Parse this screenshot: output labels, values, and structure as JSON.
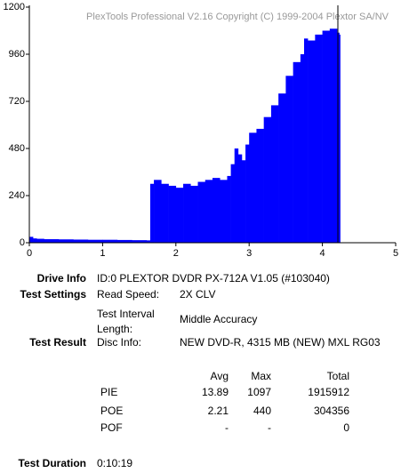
{
  "chart_data": {
    "type": "step-area",
    "title": "PlexTools Professional V2.16 Copyright (C) 1999-2004 Plextor SA/NV",
    "x": [
      0,
      0.05,
      0.1,
      0.2,
      0.4,
      0.6,
      0.8,
      1.0,
      1.2,
      1.4,
      1.6,
      1.64,
      1.65,
      1.7,
      1.8,
      1.9,
      2.0,
      2.1,
      2.2,
      2.3,
      2.4,
      2.5,
      2.6,
      2.7,
      2.75,
      2.8,
      2.85,
      2.9,
      2.95,
      3.0,
      3.1,
      3.2,
      3.3,
      3.4,
      3.5,
      3.6,
      3.7,
      3.75,
      3.8,
      3.9,
      4.0,
      4.1,
      4.2,
      4.23
    ],
    "values": [
      30,
      22,
      20,
      18,
      17,
      16,
      15,
      15,
      14,
      13,
      12,
      12,
      300,
      320,
      300,
      290,
      280,
      300,
      290,
      310,
      320,
      330,
      320,
      340,
      400,
      480,
      450,
      420,
      500,
      560,
      580,
      640,
      700,
      760,
      850,
      920,
      960,
      1040,
      1030,
      1060,
      1080,
      1090,
      1070,
      1060
    ],
    "color": "#0000ff",
    "xlim": [
      0,
      5
    ],
    "xticks": [
      0,
      1,
      2,
      3,
      4,
      5
    ],
    "ylim": [
      0,
      1200
    ],
    "yticks": [
      0,
      240,
      480,
      720,
      960,
      1200
    ]
  },
  "drive_info": {
    "label": "Drive Info",
    "value": "ID:0 PLEXTOR DVDR PX-712A V1.05 (#103040)"
  },
  "test_settings": {
    "label": "Test Settings",
    "rows": [
      [
        "Read Speed:",
        "2X CLV"
      ],
      [
        "Test Interval Length:",
        "Middle Accuracy"
      ]
    ]
  },
  "test_result": {
    "label": "Test Result",
    "disc_label": "Disc Info:",
    "disc_value": "NEW DVD-R, 4315 MB (NEW) MXL RG03",
    "headers": [
      "Avg",
      "Max",
      "Total"
    ],
    "rows": [
      [
        "PIE",
        "13.89",
        "1097",
        "1915912"
      ],
      [
        "POE",
        "2.21",
        "440",
        "304356"
      ],
      [
        "POF",
        "-",
        "-",
        "0"
      ]
    ]
  },
  "test_duration": {
    "label": "Test Duration",
    "value": "0:10:19"
  }
}
